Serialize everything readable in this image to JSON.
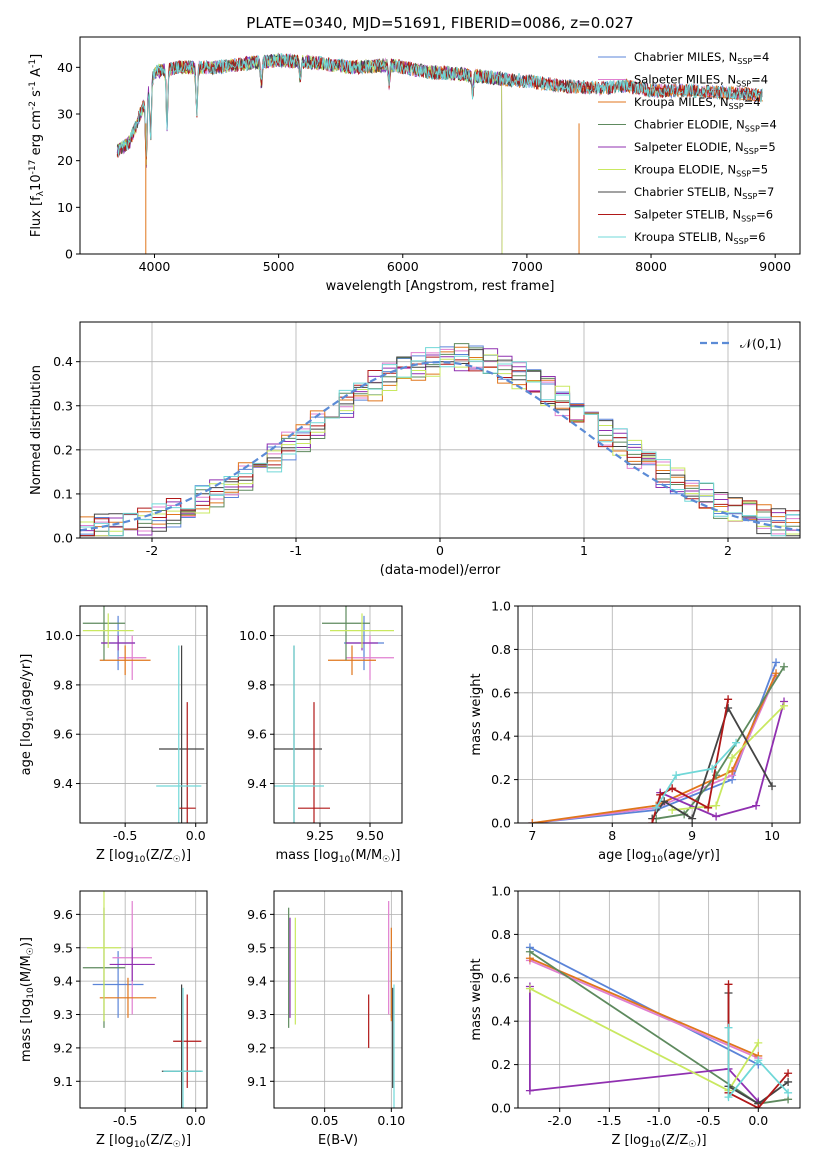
{
  "figure_title": "PLATE=0340, MJD=51691, FIBERID=0086, z=0.027",
  "colors": {
    "Chabrier MILES": "#5b84d8",
    "Salpeter MILES": "#e07fd0",
    "Kroupa MILES": "#e0761c",
    "Chabrier ELODIE": "#5e8a5e",
    "Salpeter ELODIE": "#9030b0",
    "Kroupa ELODIE": "#c9e860",
    "Chabrier STELIB": "#444444",
    "Salpeter STELIB": "#b01818",
    "Kroupa STELIB": "#70d8d8",
    "normal": "#5b8bd6",
    "grid": "#b0b0b0"
  },
  "chart_data": [
    {
      "id": "spectrum",
      "type": "line",
      "xlabel": "wavelength [Angstrom, rest frame]",
      "ylabel": "Flux [f$_\\lambda$10$^{-17}$ erg cm$^{-2}$ s$^{-1}$ A$^{-1}$]",
      "xlim": [
        3400,
        9200
      ],
      "ylim": [
        0,
        46.5
      ],
      "xticks": [
        4000,
        5000,
        6000,
        7000,
        8000,
        9000
      ],
      "yticks": [
        0,
        10,
        20,
        30,
        40
      ],
      "grid": false,
      "legend": "top-right",
      "continuum": [
        [
          3700,
          22
        ],
        [
          3800,
          24
        ],
        [
          3900,
          31
        ],
        [
          4000,
          39
        ],
        [
          4200,
          40
        ],
        [
          4500,
          40
        ],
        [
          4800,
          41
        ],
        [
          5000,
          41.5
        ],
        [
          5300,
          41
        ],
        [
          5600,
          40
        ],
        [
          5900,
          40.5
        ],
        [
          6200,
          39
        ],
        [
          6500,
          38.5
        ],
        [
          6800,
          37.5
        ],
        [
          7000,
          37
        ],
        [
          7300,
          36
        ],
        [
          7600,
          35.5
        ],
        [
          7800,
          36
        ],
        [
          8000,
          35
        ],
        [
          8300,
          35
        ],
        [
          8600,
          34.5
        ],
        [
          8900,
          34
        ]
      ],
      "series": [
        {
          "name": "Chabrier MILES, N$_{SSP}$=4",
          "end": 8900
        },
        {
          "name": "Salpeter MILES, N$_{SSP}$=4",
          "end": 8900
        },
        {
          "name": "Kroupa MILES, N$_{SSP}$=4",
          "end": 8900
        },
        {
          "name": "Chabrier ELODIE, N$_{SSP}$=4",
          "end": 6800
        },
        {
          "name": "Salpeter ELODIE, N$_{SSP}$=5",
          "end": 6800
        },
        {
          "name": "Kroupa ELODIE, N$_{SSP}$=5",
          "end": 6800
        },
        {
          "name": "Chabrier STELIB, N$_{SSP}$=7",
          "end": 8900
        },
        {
          "name": "Salpeter STELIB, N$_{SSP}$=6",
          "end": 8900
        },
        {
          "name": "Kroupa STELIB, N$_{SSP}$=6",
          "end": 8900
        }
      ]
    },
    {
      "id": "residuals",
      "type": "line",
      "xlabel": "(data-model)/error",
      "ylabel": "Normed distribution",
      "xlim": [
        -2.5,
        2.5
      ],
      "ylim": [
        0,
        0.49
      ],
      "xticks": [
        -2,
        -1,
        0,
        1,
        2
      ],
      "yticks": [
        0.0,
        0.1,
        0.2,
        0.3,
        0.4
      ],
      "grid": true,
      "legend": "top-right",
      "normal_label": "$\\mathcal{N}(0,1)$"
    },
    {
      "id": "age-vs-Z",
      "type": "scatter",
      "xlabel": "Z [log$_{10}$(Z/Z$_\\odot$)]",
      "ylabel": "age  [log$_{10}$(age/yr)]",
      "xlim": [
        -0.82,
        0.08
      ],
      "ylim": [
        9.24,
        10.12
      ],
      "xticks": [
        -0.5,
        0.0
      ],
      "yticks": [
        9.4,
        9.6,
        9.8,
        10.0
      ],
      "grid": true,
      "points": [
        {
          "x": -0.55,
          "y": 9.97,
          "xerr": 0.12,
          "yerr": 0.11
        },
        {
          "x": -0.45,
          "y": 9.91,
          "xerr": 0.1,
          "yerr": 0.09
        },
        {
          "x": -0.5,
          "y": 9.9,
          "xerr": 0.18,
          "yerr": 0.06
        },
        {
          "x": -0.65,
          "y": 10.05,
          "xerr": 0.15,
          "yerr": 0.15
        },
        {
          "x": -0.55,
          "y": 9.97,
          "xerr": 0.12,
          "yerr": 0.03
        },
        {
          "x": -0.62,
          "y": 10.02,
          "xerr": 0.18,
          "yerr": 0.07
        },
        {
          "x": -0.1,
          "y": 9.54,
          "xerr": 0.16,
          "yerr": 0.42
        },
        {
          "x": -0.06,
          "y": 9.3,
          "xerr": 0.06,
          "yerr": 0.43
        },
        {
          "x": -0.12,
          "y": 9.39,
          "xerr": 0.16,
          "yerr": 0.57
        }
      ]
    },
    {
      "id": "age-vs-mass",
      "type": "scatter",
      "xlabel": "mass [log$_{10}$(M/M$_\\odot$)]",
      "ylabel": "",
      "xlim": [
        9.02,
        9.66
      ],
      "ylim": [
        9.24,
        10.12
      ],
      "xticks": [
        9.25,
        9.5
      ],
      "yticks": [
        9.4,
        9.6,
        9.8,
        10.0
      ],
      "grid": true,
      "points": [
        {
          "x": 9.47,
          "y": 9.97,
          "xerr": 0.1,
          "yerr": 0.11
        },
        {
          "x": 9.5,
          "y": 9.91,
          "xerr": 0.12,
          "yerr": 0.09
        },
        {
          "x": 9.41,
          "y": 9.9,
          "xerr": 0.12,
          "yerr": 0.06
        },
        {
          "x": 9.38,
          "y": 10.05,
          "xerr": 0.12,
          "yerr": 0.15
        },
        {
          "x": 9.46,
          "y": 9.97,
          "xerr": 0.08,
          "yerr": 0.03
        },
        {
          "x": 9.46,
          "y": 10.02,
          "xerr": 0.16,
          "yerr": 0.07
        },
        {
          "x": 9.12,
          "y": 9.54,
          "xerr": 0.14,
          "yerr": 0.42
        },
        {
          "x": 9.22,
          "y": 9.3,
          "xerr": 0.08,
          "yerr": 0.43
        },
        {
          "x": 9.12,
          "y": 9.39,
          "xerr": 0.15,
          "yerr": 0.57
        }
      ]
    },
    {
      "id": "weight-vs-age",
      "type": "line",
      "xlabel": "age  [log$_{10}$(age/yr)]",
      "ylabel": "mass weight",
      "xlim": [
        6.82,
        10.35
      ],
      "ylim": [
        0,
        1
      ],
      "xticks": [
        7,
        8,
        9,
        10
      ],
      "yticks": [
        0.0,
        0.2,
        0.4,
        0.6,
        0.8,
        1.0
      ],
      "grid": true,
      "series": [
        {
          "x": [
            7.0,
            8.55,
            9.5,
            10.05
          ],
          "y": [
            0.0,
            0.06,
            0.2,
            0.74
          ]
        },
        {
          "x": [
            7.0,
            8.55,
            9.5,
            10.05
          ],
          "y": [
            0.0,
            0.07,
            0.22,
            0.68
          ]
        },
        {
          "x": [
            7.0,
            8.55,
            9.5,
            10.05
          ],
          "y": [
            0.0,
            0.08,
            0.24,
            0.69
          ]
        },
        {
          "x": [
            8.55,
            8.9,
            9.3,
            10.15
          ],
          "y": [
            0.02,
            0.04,
            0.22,
            0.72
          ]
        },
        {
          "x": [
            8.6,
            9.3,
            9.8,
            10.15
          ],
          "y": [
            0.14,
            0.03,
            0.08,
            0.56
          ]
        },
        {
          "x": [
            8.75,
            9.3,
            9.5,
            10.15
          ],
          "y": [
            0.06,
            0.08,
            0.3,
            0.54
          ]
        },
        {
          "x": [
            8.5,
            8.65,
            9.0,
            9.45,
            10.0
          ],
          "y": [
            0.02,
            0.1,
            0.02,
            0.53,
            0.17
          ]
        },
        {
          "x": [
            8.5,
            8.6,
            8.75,
            9.2,
            9.45
          ],
          "y": [
            0.0,
            0.13,
            0.16,
            0.07,
            0.57
          ]
        },
        {
          "x": [
            8.55,
            8.8,
            9.25,
            9.55
          ],
          "y": [
            0.07,
            0.22,
            0.25,
            0.37
          ]
        }
      ]
    },
    {
      "id": "mass-vs-Z",
      "type": "scatter",
      "xlabel": "Z [log$_{10}$(Z/Z$_\\odot$)]",
      "ylabel": "mass [log$_{10}$(M/M$_\\odot$)]",
      "xlim": [
        -0.82,
        0.08
      ],
      "ylim": [
        9.02,
        9.67
      ],
      "xticks": [
        -0.5,
        0.0
      ],
      "yticks": [
        9.1,
        9.2,
        9.3,
        9.4,
        9.5,
        9.6
      ],
      "grid": true,
      "points": [
        {
          "x": -0.55,
          "y": 9.39,
          "xerr": 0.18,
          "yerr": 0.1
        },
        {
          "x": -0.45,
          "y": 9.47,
          "xerr": 0.14,
          "yerr": 0.17
        },
        {
          "x": -0.48,
          "y": 9.35,
          "xerr": 0.2,
          "yerr": 0.06
        },
        {
          "x": -0.65,
          "y": 9.44,
          "xerr": 0.15,
          "yerr": 0.18
        },
        {
          "x": -0.45,
          "y": 9.45,
          "xerr": 0.16,
          "yerr": 0.05
        },
        {
          "x": -0.65,
          "y": 9.5,
          "xerr": 0.12,
          "yerr": 0.22
        },
        {
          "x": -0.1,
          "y": 9.13,
          "xerr": 0.14,
          "yerr": 0.26
        },
        {
          "x": -0.06,
          "y": 9.22,
          "xerr": 0.1,
          "yerr": 0.14
        },
        {
          "x": -0.09,
          "y": 9.13,
          "xerr": 0.14,
          "yerr": 0.25
        }
      ]
    },
    {
      "id": "mass-vs-EBV",
      "type": "scatter",
      "xlabel": "E(B-V)",
      "ylabel": "",
      "xlim": [
        0.012,
        0.108
      ],
      "ylim": [
        9.02,
        9.67
      ],
      "xticks": [
        0.05,
        0.1
      ],
      "yticks": [
        9.1,
        9.2,
        9.3,
        9.4,
        9.5,
        9.6
      ],
      "grid": true,
      "points": [
        {
          "x": 0.1,
          "y": 9.39,
          "yerr": 0.1
        },
        {
          "x": 0.098,
          "y": 9.47,
          "yerr": 0.17
        },
        {
          "x": 0.1,
          "y": 9.42,
          "yerr": 0.14
        },
        {
          "x": 0.023,
          "y": 9.44,
          "yerr": 0.18
        },
        {
          "x": 0.024,
          "y": 9.44,
          "yerr": 0.15
        },
        {
          "x": 0.028,
          "y": 9.43,
          "yerr": 0.16
        },
        {
          "x": 0.101,
          "y": 9.23,
          "yerr": 0.15
        },
        {
          "x": 0.083,
          "y": 9.28,
          "yerr": 0.08
        },
        {
          "x": 0.102,
          "y": 9.2,
          "yerr": 0.19
        }
      ]
    },
    {
      "id": "weight-vs-Z",
      "type": "line",
      "xlabel": "Z [log$_{10}$(Z/Z$_\\odot$)]",
      "ylabel": "mass weight",
      "xlim": [
        -2.42,
        0.42
      ],
      "ylim": [
        0,
        1
      ],
      "xticks": [
        -2.0,
        -1.5,
        -1.0,
        -0.5,
        0.0
      ],
      "yticks": [
        0.0,
        0.2,
        0.4,
        0.6,
        0.8,
        1.0
      ],
      "grid": true,
      "series": [
        {
          "x": [
            -2.3,
            0.0
          ],
          "y": [
            0.74,
            0.2
          ]
        },
        {
          "x": [
            -2.3,
            0.0
          ],
          "y": [
            0.68,
            0.23
          ]
        },
        {
          "x": [
            -2.3,
            0.0
          ],
          "y": [
            0.69,
            0.24
          ]
        },
        {
          "x": [
            -2.3,
            0.0,
            0.3
          ],
          "y": [
            0.72,
            0.02,
            0.04
          ]
        },
        {
          "x": [
            -2.3,
            -2.3,
            -0.3,
            0.0
          ],
          "y": [
            0.56,
            0.08,
            0.18,
            0.03
          ]
        },
        {
          "x": [
            -2.3,
            -0.3,
            0.0
          ],
          "y": [
            0.55,
            0.08,
            0.3
          ]
        },
        {
          "x": [
            -0.3,
            -0.3,
            0.0,
            0.3
          ],
          "y": [
            0.53,
            0.1,
            0.02,
            0.12
          ]
        },
        {
          "x": [
            -0.3,
            -0.3,
            0.0,
            0.3
          ],
          "y": [
            0.57,
            0.07,
            0.0,
            0.16
          ]
        },
        {
          "x": [
            -0.3,
            -0.3,
            0.0,
            0.3
          ],
          "y": [
            0.37,
            0.05,
            0.22,
            0.07
          ]
        }
      ]
    }
  ]
}
